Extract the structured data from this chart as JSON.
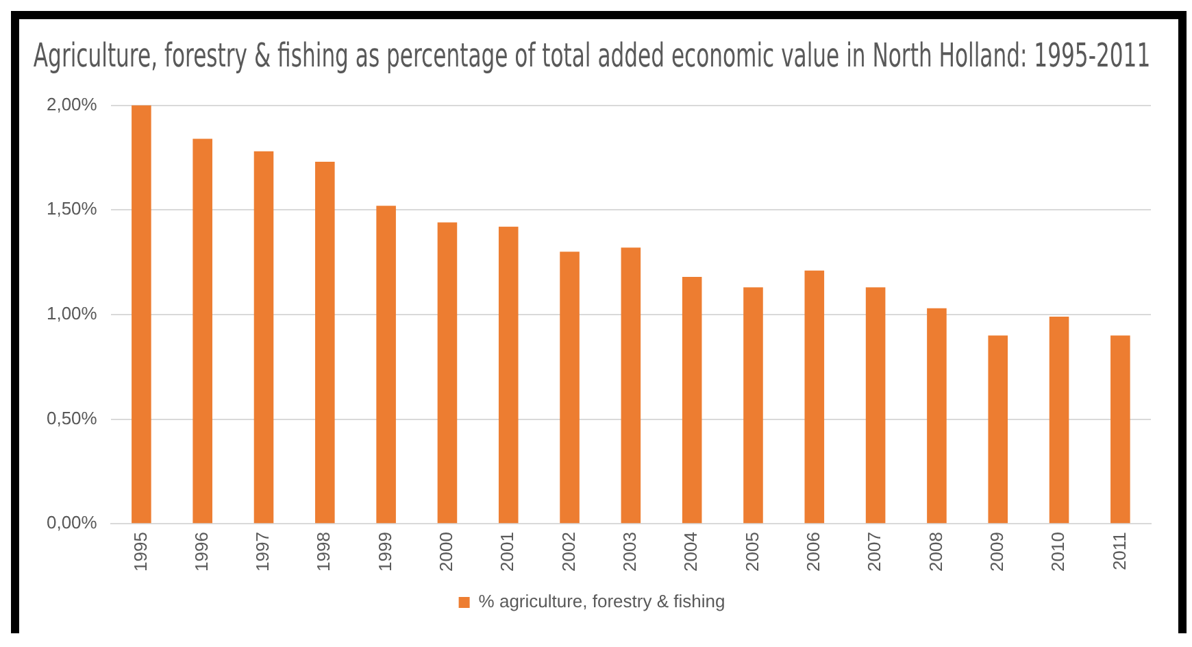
{
  "chart_data": {
    "type": "bar",
    "title": "Agriculture, forestry & fishing as percentage of total added economic value in North Holland: 1995-2011",
    "categories": [
      "1995",
      "1996",
      "1997",
      "1998",
      "1999",
      "2000",
      "2001",
      "2002",
      "2003",
      "2004",
      "2005",
      "2006",
      "2007",
      "2008",
      "2009",
      "2010",
      "2011"
    ],
    "series": [
      {
        "name": "% agriculture, forestry & fishing",
        "color": "#ed7d31",
        "values": [
          2.0,
          1.84,
          1.78,
          1.73,
          1.52,
          1.44,
          1.42,
          1.3,
          1.32,
          1.18,
          1.13,
          1.21,
          1.13,
          1.03,
          0.9,
          0.99,
          0.9
        ]
      }
    ],
    "ylim": [
      0,
      2
    ],
    "yticks": [
      {
        "value": 0,
        "label": "0,00%"
      },
      {
        "value": 0.5,
        "label": "0,50%"
      },
      {
        "value": 1,
        "label": "1,00%"
      },
      {
        "value": 1.5,
        "label": "1,50%"
      },
      {
        "value": 2,
        "label": "2,00%"
      }
    ],
    "grid": "y",
    "legend": "bottom"
  }
}
